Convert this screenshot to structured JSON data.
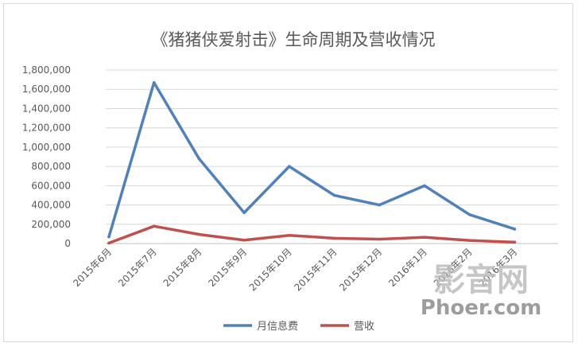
{
  "chart_data": {
    "type": "line",
    "title": "《猪猪侠爱射击》生命周期及营收情况",
    "categories": [
      "2015年6月",
      "2015年7月",
      "2015年8月",
      "2015年9月",
      "2015年10月",
      "2015年11月",
      "2015年12月",
      "2016年1月",
      "2016年2月",
      "2016年3月"
    ],
    "series": [
      {
        "name": "月信息费",
        "color": "#4f81bd",
        "values": [
          70000,
          1670000,
          880000,
          320000,
          800000,
          500000,
          400000,
          600000,
          300000,
          150000
        ]
      },
      {
        "name": "营收",
        "color": "#c0504d",
        "values": [
          5000,
          180000,
          95000,
          35000,
          85000,
          55000,
          45000,
          65000,
          32000,
          14000
        ]
      }
    ],
    "ylim": [
      0,
      1800000
    ],
    "yticks": [
      "0",
      "200,000",
      "400,000",
      "600,000",
      "800,000",
      "1,000,000",
      "1,200,000",
      "1,400,000",
      "1,600,000",
      "1,800,000"
    ],
    "grid": true,
    "legend": "bottom"
  },
  "watermark": {
    "line1": "影音网",
    "line2": "Phoer.com"
  }
}
